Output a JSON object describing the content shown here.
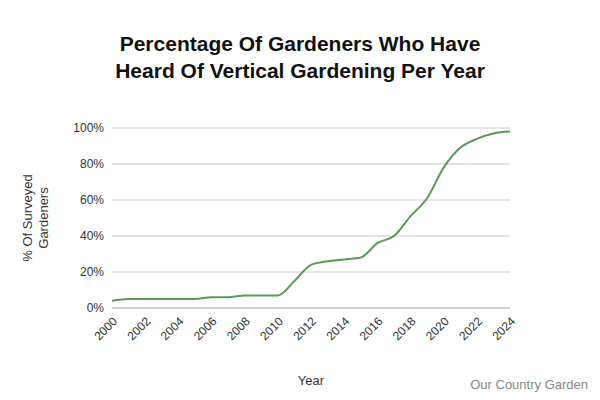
{
  "chart_data": {
    "type": "line",
    "title": "Percentage Of Gardeners Who Have Heard Of Vertical Gardening Per Year",
    "x_label": "Year",
    "y_label": "% Of Surveyed Gardeners",
    "source": "Our Country Garden",
    "x": [
      2000,
      2001,
      2002,
      2003,
      2004,
      2005,
      2006,
      2007,
      2008,
      2009,
      2010,
      2011,
      2012,
      2013,
      2014,
      2015,
      2016,
      2017,
      2018,
      2019,
      2020,
      2021,
      2022,
      2023,
      2024
    ],
    "values": [
      4,
      5,
      5,
      5,
      5,
      5,
      6,
      6,
      7,
      7,
      7,
      15,
      24,
      26,
      27,
      28,
      36,
      40,
      51,
      61,
      78,
      89,
      94,
      97,
      98
    ],
    "color": "#5b9a55",
    "xlim": [
      2000,
      2024
    ],
    "xticks": [
      2000,
      2002,
      2004,
      2006,
      2008,
      2010,
      2012,
      2014,
      2016,
      2018,
      2020,
      2022,
      2024
    ],
    "ylim": [
      0,
      100
    ],
    "yticks": [
      {
        "value": 0,
        "label": "0%"
      },
      {
        "value": 20,
        "label": "20%"
      },
      {
        "value": 40,
        "label": "40%"
      },
      {
        "value": 60,
        "label": "60%"
      },
      {
        "value": 80,
        "label": "80%"
      },
      {
        "value": 100,
        "label": "100%"
      }
    ],
    "grid": true
  }
}
